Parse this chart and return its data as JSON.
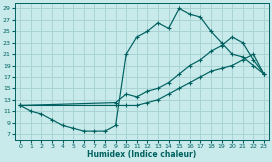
{
  "xlabel": "Humidex (Indice chaleur)",
  "bg_color": "#c8eaea",
  "grid_color": "#aad4d4",
  "line_color": "#006060",
  "xlim": [
    -0.5,
    23.5
  ],
  "ylim": [
    6.0,
    30.0
  ],
  "xticks": [
    0,
    1,
    2,
    3,
    4,
    5,
    6,
    7,
    8,
    9,
    10,
    11,
    12,
    13,
    14,
    15,
    16,
    17,
    18,
    19,
    20,
    21,
    22,
    23
  ],
  "yticks": [
    7,
    9,
    11,
    13,
    15,
    17,
    19,
    21,
    23,
    25,
    27,
    29
  ],
  "curve1_x": [
    0,
    1,
    2,
    3,
    4,
    5,
    6,
    7,
    8,
    9,
    10,
    11,
    12,
    13,
    14,
    15,
    16,
    17,
    18,
    19,
    20,
    21,
    22,
    23
  ],
  "curve1_y": [
    12,
    11,
    10.5,
    9.5,
    8.5,
    8,
    7.5,
    7.5,
    7.5,
    8.5,
    21,
    24,
    25,
    26.5,
    25.5,
    29,
    28,
    27.5,
    25,
    23,
    21,
    20.5,
    19,
    17.5
  ],
  "curve2_x": [
    0,
    9,
    10,
    11,
    12,
    13,
    14,
    15,
    16,
    17,
    18,
    19,
    20,
    21,
    22,
    23
  ],
  "curve2_y": [
    12,
    12.5,
    14,
    13.5,
    14.5,
    15,
    16,
    17.5,
    19,
    20,
    21.5,
    22.5,
    24,
    23,
    20,
    17.5
  ],
  "curve3_x": [
    0,
    9,
    10,
    11,
    12,
    13,
    14,
    15,
    16,
    17,
    18,
    19,
    20,
    21,
    22,
    23
  ],
  "curve3_y": [
    12,
    12,
    12,
    12,
    12.5,
    13,
    14,
    15,
    16,
    17,
    18,
    18.5,
    19,
    20,
    21,
    17.5
  ]
}
